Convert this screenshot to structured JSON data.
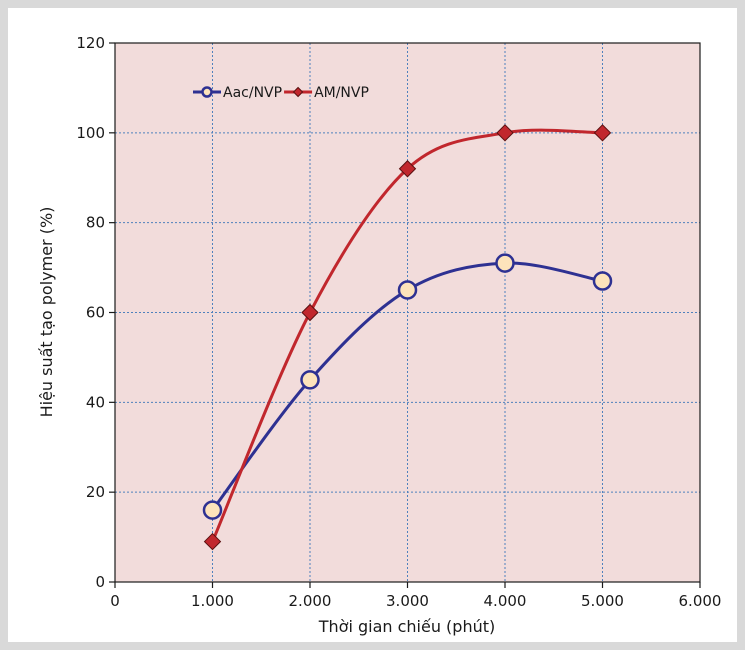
{
  "chart_data": {
    "type": "line",
    "xlabel": "Thời gian chiếu (phút)",
    "ylabel": "Hiệu suất tạo polymer (%)",
    "xlim": [
      0,
      6000
    ],
    "ylim": [
      0,
      120
    ],
    "x_ticks": [
      0,
      1000,
      2000,
      3000,
      4000,
      5000,
      6000
    ],
    "x_tick_labels": [
      "0",
      "1.000",
      "2.000",
      "3.000",
      "4.000",
      "5.000",
      "6.000"
    ],
    "y_ticks": [
      0,
      20,
      40,
      60,
      80,
      100,
      120
    ],
    "y_tick_labels": [
      "0",
      "20",
      "40",
      "60",
      "80",
      "100",
      "120"
    ],
    "grid": true,
    "legend_position": "top-left",
    "colors": {
      "plot_bg": "#f2dcdb",
      "grid": "#4f81bd",
      "aac": "#2e3192",
      "am": "#c1272d",
      "aac_fill": "#fde3bb",
      "am_fill": "#c1272d"
    },
    "series": [
      {
        "name": "Aac/NVP",
        "marker": "circle",
        "x": [
          1000,
          2000,
          3000,
          4000,
          5000
        ],
        "values": [
          16,
          45,
          65,
          71,
          67
        ]
      },
      {
        "name": "AM/NVP",
        "marker": "diamond",
        "x": [
          1000,
          2000,
          3000,
          4000,
          5000
        ],
        "values": [
          9,
          60,
          92,
          100,
          100
        ]
      }
    ]
  }
}
